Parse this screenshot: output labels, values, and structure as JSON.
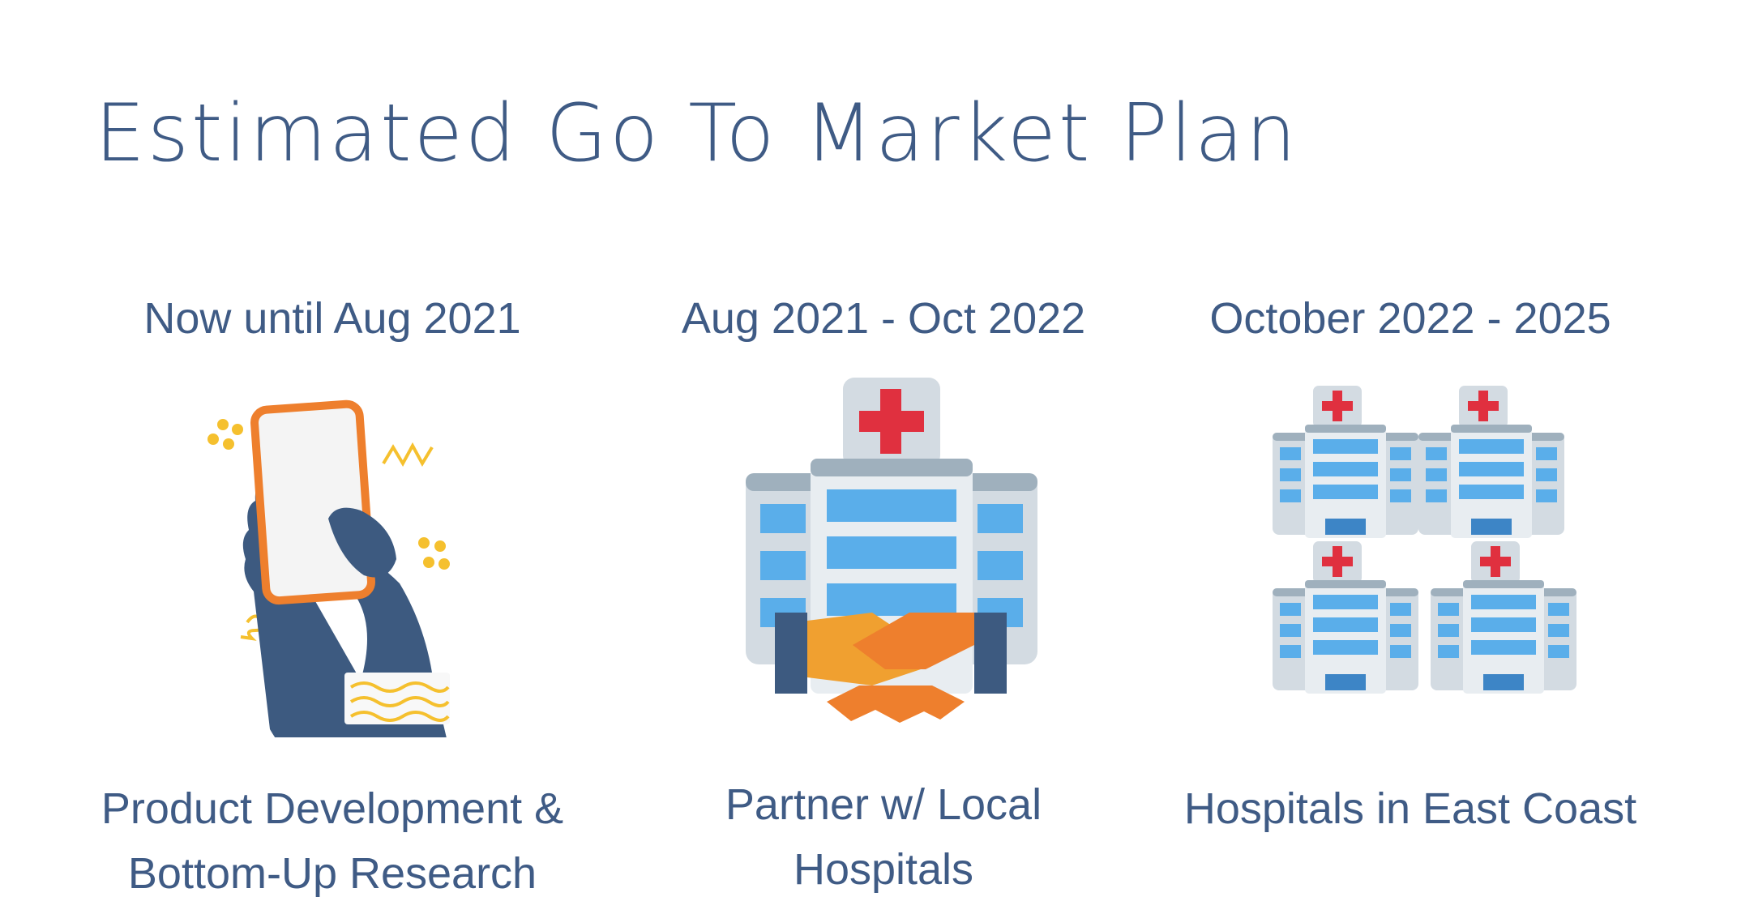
{
  "title": "Estimated Go To Market Plan",
  "phases": [
    {
      "period": "Now until Aug 2021",
      "description_line1": "Product Development &",
      "description_line2": "Bottom-Up Research",
      "icon": "hand-holding-phone-icon"
    },
    {
      "period": "Aug 2021 - Oct 2022",
      "description_line1": "Partner w/ Local",
      "description_line2": "Hospitals",
      "icon": "hospital-handshake-icon"
    },
    {
      "period": "October 2022 - 2025",
      "description_line1": "Hospitals in East Coast",
      "description_line2": "",
      "icon": "multiple-hospitals-icon"
    }
  ],
  "colors": {
    "text": "#3f5b85",
    "accent_red": "#e0303f",
    "building_blue": "#5aaeea",
    "hand_navy": "#3d5a80",
    "handshake_orange": "#f0a030"
  }
}
